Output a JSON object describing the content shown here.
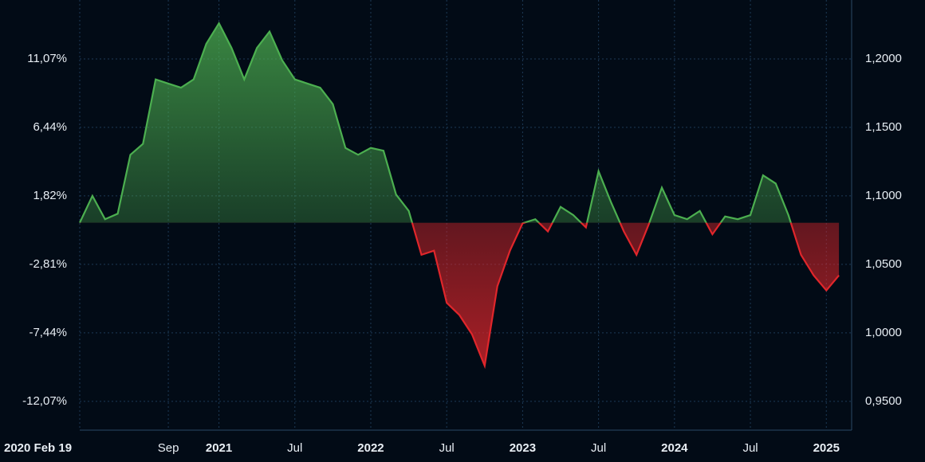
{
  "chart_data": {
    "type": "line",
    "x": [
      "2020-02",
      "2020-03",
      "2020-04",
      "2020-05",
      "2020-06",
      "2020-07",
      "2020-08",
      "2020-09",
      "2020-10",
      "2020-11",
      "2020-12",
      "2021-01",
      "2021-02",
      "2021-03",
      "2021-04",
      "2021-05",
      "2021-06",
      "2021-07",
      "2021-08",
      "2021-09",
      "2021-10",
      "2021-11",
      "2021-12",
      "2022-01",
      "2022-02",
      "2022-03",
      "2022-04",
      "2022-05",
      "2022-06",
      "2022-07",
      "2022-08",
      "2022-09",
      "2022-10",
      "2022-11",
      "2022-12",
      "2023-01",
      "2023-02",
      "2023-03",
      "2023-04",
      "2023-05",
      "2023-06",
      "2023-07",
      "2023-08",
      "2023-09",
      "2023-10",
      "2023-11",
      "2023-12",
      "2024-01",
      "2024-02",
      "2024-03",
      "2024-04",
      "2024-05",
      "2024-06",
      "2024-07",
      "2024-08",
      "2024-09",
      "2024-10",
      "2024-11",
      "2024-12",
      "2025-01",
      "2025-02"
    ],
    "values": [
      1.0804,
      1.1,
      1.083,
      1.087,
      1.13,
      1.138,
      1.185,
      1.182,
      1.179,
      1.185,
      1.211,
      1.226,
      1.208,
      1.185,
      1.208,
      1.22,
      1.199,
      1.185,
      1.182,
      1.179,
      1.167,
      1.135,
      1.13,
      1.135,
      1.133,
      1.101,
      1.089,
      1.057,
      1.06,
      1.022,
      1.013,
      0.999,
      0.976,
      1.034,
      1.06,
      1.08,
      1.083,
      1.074,
      1.092,
      1.086,
      1.077,
      1.118,
      1.095,
      1.074,
      1.057,
      1.08,
      1.106,
      1.086,
      1.083,
      1.089,
      1.072,
      1.085,
      1.083,
      1.086,
      1.115,
      1.109,
      1.086,
      1.057,
      1.042,
      1.031,
      1.042
    ],
    "up_color": "#4caf50",
    "down_color": "#e0262b",
    "xlim": [
      "2020-02",
      "2025-03"
    ],
    "xticks": [
      {
        "value": "2020-02",
        "label": "2020 Feb 19"
      },
      {
        "value": "2020-09",
        "label": "Sep"
      },
      {
        "value": "2021-01",
        "label": "2021"
      },
      {
        "value": "2021-07",
        "label": "Jul"
      },
      {
        "value": "2022-01",
        "label": "2022"
      },
      {
        "value": "2022-07",
        "label": "Jul"
      },
      {
        "value": "2023-01",
        "label": "2023"
      },
      {
        "value": "2023-07",
        "label": "Jul"
      },
      {
        "value": "2024-01",
        "label": "2024"
      },
      {
        "value": "2024-07",
        "label": "Jul"
      },
      {
        "value": "2025-01",
        "label": "2025"
      }
    ],
    "ylim": [
      0.929,
      1.243
    ],
    "yticks": [
      {
        "value": 1.2,
        "label": "1,2000"
      },
      {
        "value": 1.15,
        "label": "1,1500"
      },
      {
        "value": 1.1,
        "label": "1,1000"
      },
      {
        "value": 1.05,
        "label": "1,0500"
      },
      {
        "value": 1.0,
        "label": "1,0000"
      },
      {
        "value": 0.95,
        "label": "0,9500"
      }
    ],
    "y2lim": [
      -14.01,
      15.05
    ],
    "y2ticks": [
      {
        "value": 11.07,
        "label": "11,07%"
      },
      {
        "value": 6.44,
        "label": "6,44%"
      },
      {
        "value": 1.82,
        "label": "1,82%"
      },
      {
        "value": -2.81,
        "label": "-2,81%"
      },
      {
        "value": -7.44,
        "label": "-7,44%"
      },
      {
        "value": -12.07,
        "label": "-12,07%"
      }
    ],
    "grid": true
  }
}
